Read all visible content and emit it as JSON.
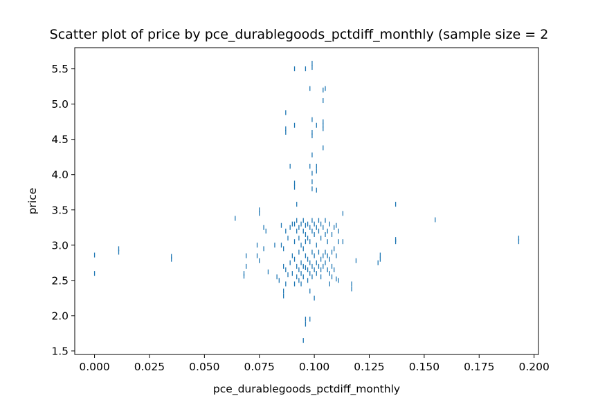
{
  "chart_data": {
    "type": "scatter",
    "title": "Scatter plot of price by pce_durablegoods_pctdiff_monthly (sample size = 2",
    "xlabel": "pce_durablegoods_pctdiff_monthly",
    "ylabel": "price",
    "xlim": [
      -0.009,
      0.202
    ],
    "ylim": [
      1.45,
      5.8
    ],
    "x_ticks": [
      0.0,
      0.025,
      0.05,
      0.075,
      0.1,
      0.125,
      0.15,
      0.175,
      0.2
    ],
    "x_tick_labels": [
      "0.000",
      "0.025",
      "0.050",
      "0.075",
      "0.100",
      "0.125",
      "0.150",
      "0.175",
      "0.200"
    ],
    "y_ticks": [
      1.5,
      2.0,
      2.5,
      3.0,
      3.5,
      4.0,
      4.5,
      5.0,
      5.5
    ],
    "y_tick_labels": [
      "1.5",
      "2.0",
      "2.5",
      "3.0",
      "3.5",
      "4.0",
      "4.5",
      "5.0",
      "5.5"
    ],
    "grid": false,
    "legend": "none",
    "marker": "vertical-tick",
    "color": "#1f77b4",
    "points": [
      [
        0.0,
        2.86
      ],
      [
        0.0,
        2.6
      ],
      [
        0.011,
        2.95
      ],
      [
        0.011,
        2.9
      ],
      [
        0.035,
        2.84
      ],
      [
        0.035,
        2.8
      ],
      [
        0.064,
        3.38
      ],
      [
        0.068,
        2.6
      ],
      [
        0.068,
        2.56
      ],
      [
        0.069,
        2.85
      ],
      [
        0.069,
        2.7
      ],
      [
        0.075,
        3.5
      ],
      [
        0.075,
        3.45
      ],
      [
        0.074,
        3.0
      ],
      [
        0.074,
        2.85
      ],
      [
        0.075,
        2.78
      ],
      [
        0.077,
        3.25
      ],
      [
        0.078,
        3.2
      ],
      [
        0.077,
        2.95
      ],
      [
        0.079,
        2.62
      ],
      [
        0.082,
        3.0
      ],
      [
        0.083,
        2.55
      ],
      [
        0.084,
        2.5
      ],
      [
        0.085,
        3.28
      ],
      [
        0.085,
        3.0
      ],
      [
        0.086,
        2.95
      ],
      [
        0.086,
        2.7
      ],
      [
        0.086,
        2.35
      ],
      [
        0.086,
        2.28
      ],
      [
        0.087,
        4.88
      ],
      [
        0.087,
        4.65
      ],
      [
        0.087,
        4.6
      ],
      [
        0.087,
        3.2
      ],
      [
        0.087,
        2.65
      ],
      [
        0.087,
        2.45
      ],
      [
        0.088,
        3.1
      ],
      [
        0.088,
        2.58
      ],
      [
        0.089,
        4.12
      ],
      [
        0.089,
        3.25
      ],
      [
        0.089,
        2.75
      ],
      [
        0.09,
        3.3
      ],
      [
        0.09,
        2.85
      ],
      [
        0.09,
        2.6
      ],
      [
        0.091,
        5.5
      ],
      [
        0.091,
        4.7
      ],
      [
        0.091,
        3.88
      ],
      [
        0.091,
        3.82
      ],
      [
        0.091,
        3.3
      ],
      [
        0.091,
        3.05
      ],
      [
        0.091,
        2.8
      ],
      [
        0.091,
        2.45
      ],
      [
        0.092,
        3.58
      ],
      [
        0.092,
        3.35
      ],
      [
        0.092,
        3.2
      ],
      [
        0.092,
        2.7
      ],
      [
        0.092,
        2.55
      ],
      [
        0.093,
        3.25
      ],
      [
        0.093,
        3.1
      ],
      [
        0.093,
        2.9
      ],
      [
        0.093,
        2.65
      ],
      [
        0.093,
        2.5
      ],
      [
        0.094,
        3.3
      ],
      [
        0.094,
        3.0
      ],
      [
        0.094,
        2.75
      ],
      [
        0.094,
        2.6
      ],
      [
        0.094,
        2.45
      ],
      [
        0.095,
        3.35
      ],
      [
        0.095,
        3.2
      ],
      [
        0.095,
        2.95
      ],
      [
        0.095,
        2.7
      ],
      [
        0.095,
        2.55
      ],
      [
        0.095,
        1.65
      ],
      [
        0.096,
        5.5
      ],
      [
        0.096,
        3.28
      ],
      [
        0.096,
        3.15
      ],
      [
        0.096,
        3.05
      ],
      [
        0.096,
        2.85
      ],
      [
        0.096,
        2.68
      ],
      [
        0.096,
        1.95
      ],
      [
        0.096,
        1.88
      ],
      [
        0.097,
        3.3
      ],
      [
        0.097,
        3.1
      ],
      [
        0.097,
        2.8
      ],
      [
        0.097,
        2.65
      ],
      [
        0.097,
        2.5
      ],
      [
        0.098,
        5.22
      ],
      [
        0.098,
        4.12
      ],
      [
        0.098,
        3.25
      ],
      [
        0.098,
        3.05
      ],
      [
        0.098,
        2.75
      ],
      [
        0.098,
        2.6
      ],
      [
        0.098,
        2.35
      ],
      [
        0.098,
        1.95
      ],
      [
        0.099,
        5.58
      ],
      [
        0.099,
        5.52
      ],
      [
        0.099,
        4.78
      ],
      [
        0.099,
        4.6
      ],
      [
        0.099,
        4.55
      ],
      [
        0.099,
        4.28
      ],
      [
        0.099,
        4.02
      ],
      [
        0.099,
        3.9
      ],
      [
        0.099,
        3.8
      ],
      [
        0.099,
        3.35
      ],
      [
        0.099,
        3.2
      ],
      [
        0.099,
        2.9
      ],
      [
        0.099,
        2.7
      ],
      [
        0.099,
        2.55
      ],
      [
        0.1,
        3.3
      ],
      [
        0.1,
        3.15
      ],
      [
        0.1,
        2.85
      ],
      [
        0.1,
        2.65
      ],
      [
        0.1,
        2.25
      ],
      [
        0.101,
        4.7
      ],
      [
        0.101,
        4.12
      ],
      [
        0.101,
        4.05
      ],
      [
        0.101,
        3.78
      ],
      [
        0.101,
        3.25
      ],
      [
        0.101,
        3.0
      ],
      [
        0.101,
        2.75
      ],
      [
        0.101,
        2.6
      ],
      [
        0.102,
        3.35
      ],
      [
        0.102,
        3.2
      ],
      [
        0.102,
        2.9
      ],
      [
        0.102,
        2.7
      ],
      [
        0.103,
        3.3
      ],
      [
        0.103,
        3.1
      ],
      [
        0.103,
        2.8
      ],
      [
        0.103,
        2.65
      ],
      [
        0.103,
        2.55
      ],
      [
        0.104,
        5.2
      ],
      [
        0.104,
        5.05
      ],
      [
        0.104,
        4.75
      ],
      [
        0.104,
        4.7
      ],
      [
        0.104,
        4.65
      ],
      [
        0.104,
        4.38
      ],
      [
        0.104,
        3.25
      ],
      [
        0.104,
        2.85
      ],
      [
        0.104,
        2.7
      ],
      [
        0.105,
        5.22
      ],
      [
        0.105,
        3.35
      ],
      [
        0.105,
        3.15
      ],
      [
        0.105,
        2.9
      ],
      [
        0.105,
        2.75
      ],
      [
        0.106,
        3.2
      ],
      [
        0.106,
        3.05
      ],
      [
        0.106,
        2.85
      ],
      [
        0.106,
        2.65
      ],
      [
        0.107,
        3.3
      ],
      [
        0.107,
        2.8
      ],
      [
        0.107,
        2.6
      ],
      [
        0.107,
        2.45
      ],
      [
        0.108,
        3.15
      ],
      [
        0.108,
        2.9
      ],
      [
        0.108,
        2.7
      ],
      [
        0.108,
        2.55
      ],
      [
        0.109,
        3.25
      ],
      [
        0.109,
        2.95
      ],
      [
        0.109,
        2.65
      ],
      [
        0.11,
        3.28
      ],
      [
        0.11,
        2.85
      ],
      [
        0.11,
        2.52
      ],
      [
        0.111,
        3.2
      ],
      [
        0.111,
        3.05
      ],
      [
        0.111,
        2.5
      ],
      [
        0.113,
        3.45
      ],
      [
        0.113,
        3.05
      ],
      [
        0.117,
        2.45
      ],
      [
        0.117,
        2.38
      ],
      [
        0.119,
        2.78
      ],
      [
        0.129,
        2.75
      ],
      [
        0.13,
        2.86
      ],
      [
        0.13,
        2.8
      ],
      [
        0.137,
        3.58
      ],
      [
        0.137,
        3.08
      ],
      [
        0.137,
        3.05
      ],
      [
        0.155,
        3.36
      ],
      [
        0.193,
        3.1
      ],
      [
        0.193,
        3.05
      ]
    ]
  }
}
